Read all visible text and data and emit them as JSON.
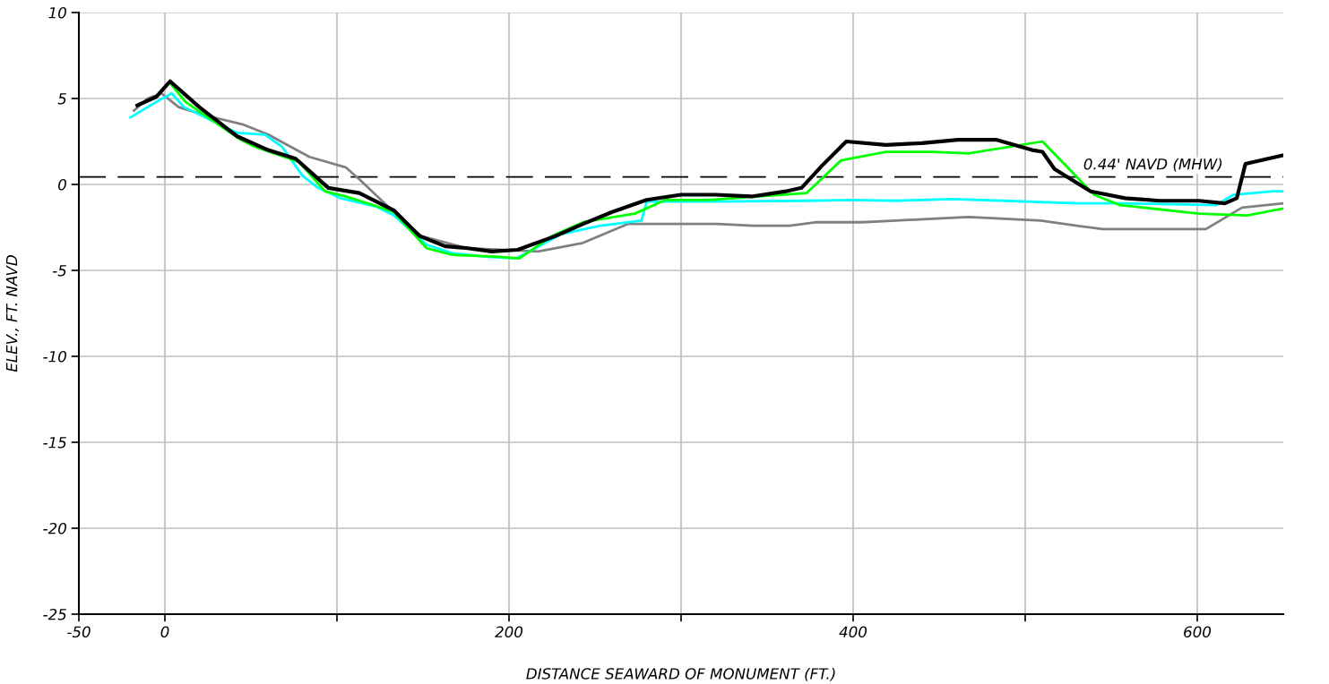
{
  "chart_data": {
    "type": "line",
    "xlabel": "DISTANCE SEAWARD OF MONUMENT (FT.)",
    "ylabel": "ELEV., FT. NAVD",
    "xlim": [
      -50,
      650
    ],
    "ylim": [
      -25,
      10
    ],
    "xticks": [
      -50,
      0,
      {
        "value": 100,
        "label": null
      },
      200,
      {
        "value": 300,
        "label": null
      },
      400,
      {
        "value": 500,
        "label": null
      },
      600
    ],
    "yticks": [
      -25,
      -20,
      -15,
      -10,
      -5,
      0,
      5,
      10
    ],
    "grid": true,
    "legend": false,
    "marker": "none",
    "line_style": "solid",
    "ref_lines": [
      {
        "axis": "y",
        "value": 0.44,
        "label": "0.44' NAVD (MHW)",
        "color": "#000000",
        "line_style": "dashed"
      }
    ],
    "series": [
      {
        "color": "#808080",
        "x": [
          -18,
          -10,
          -2,
          8,
          24,
          45,
          60,
          84,
          105,
          113,
          133,
          149,
          175,
          217,
          243,
          269,
          300,
          321,
          342,
          363,
          379,
          405,
          425,
          446,
          467,
          488,
          509,
          530,
          545,
          566,
          587,
          605,
          626,
          650
        ],
        "values": [
          4.3,
          5.0,
          5.3,
          4.5,
          4.0,
          3.5,
          2.9,
          1.6,
          1.0,
          0.3,
          -1.6,
          -3.0,
          -3.7,
          -3.9,
          -3.4,
          -2.3,
          -2.3,
          -2.3,
          -2.4,
          -2.4,
          -2.2,
          -2.2,
          -2.1,
          -2.0,
          -1.9,
          -2.0,
          -2.1,
          -2.4,
          -2.6,
          -2.6,
          -2.6,
          -2.6,
          -1.35,
          -1.1
        ]
      },
      {
        "color": "#00ffff",
        "x": [
          -20,
          -5,
          4,
          11,
          42,
          58,
          68,
          80,
          89,
          102,
          123,
          133,
          152,
          167,
          186,
          204,
          212,
          230,
          253,
          277,
          280,
          296,
          321,
          373,
          399,
          425,
          457,
          488,
          530,
          556,
          611,
          621,
          644,
          650
        ],
        "values": [
          3.9,
          4.8,
          5.3,
          4.5,
          3.0,
          2.9,
          2.2,
          0.5,
          -0.2,
          -0.8,
          -1.3,
          -1.8,
          -3.5,
          -4.0,
          -4.2,
          -4.3,
          -3.9,
          -2.9,
          -2.4,
          -2.1,
          -1.0,
          -1.0,
          -1.0,
          -0.95,
          -0.9,
          -0.95,
          -0.85,
          -0.95,
          -1.1,
          -1.1,
          -1.2,
          -0.6,
          -0.4,
          -0.4
        ]
      },
      {
        "color": "#00ff00",
        "x": [
          3,
          12,
          44,
          52,
          78,
          93,
          105,
          121,
          133,
          152,
          167,
          192,
          206,
          225,
          243,
          273,
          291,
          316,
          373,
          393,
          419,
          446,
          467,
          510,
          540,
          555,
          601,
          629,
          650
        ],
        "values": [
          5.9,
          4.8,
          2.6,
          2.2,
          1.3,
          -0.4,
          -0.7,
          -1.2,
          -1.6,
          -3.7,
          -4.1,
          -4.2,
          -4.3,
          -3.0,
          -2.2,
          -1.7,
          -0.9,
          -0.9,
          -0.5,
          1.4,
          1.9,
          1.9,
          1.8,
          2.5,
          -0.6,
          -1.2,
          -1.7,
          -1.8,
          -1.4
        ]
      },
      {
        "color": "#000000",
        "x": [
          -16,
          -5,
          3,
          20,
          42,
          60,
          76,
          95,
          113,
          133,
          148,
          163,
          175,
          190,
          205,
          227,
          243,
          260,
          280,
          300,
          320,
          341,
          361,
          370,
          382,
          396,
          419,
          440,
          461,
          483,
          504,
          510,
          517,
          538,
          558,
          578,
          601,
          616,
          623,
          628,
          650
        ],
        "values": [
          4.6,
          5.1,
          6.0,
          4.5,
          2.8,
          2.0,
          1.5,
          -0.2,
          -0.5,
          -1.5,
          -3.0,
          -3.6,
          -3.7,
          -3.9,
          -3.8,
          -3.0,
          -2.3,
          -1.6,
          -0.9,
          -0.6,
          -0.6,
          -0.7,
          -0.4,
          -0.2,
          1.1,
          2.5,
          2.3,
          2.4,
          2.6,
          2.6,
          2.0,
          1.9,
          0.9,
          -0.4,
          -0.8,
          -0.95,
          -0.95,
          -1.1,
          -0.8,
          1.2,
          1.7
        ]
      }
    ]
  }
}
